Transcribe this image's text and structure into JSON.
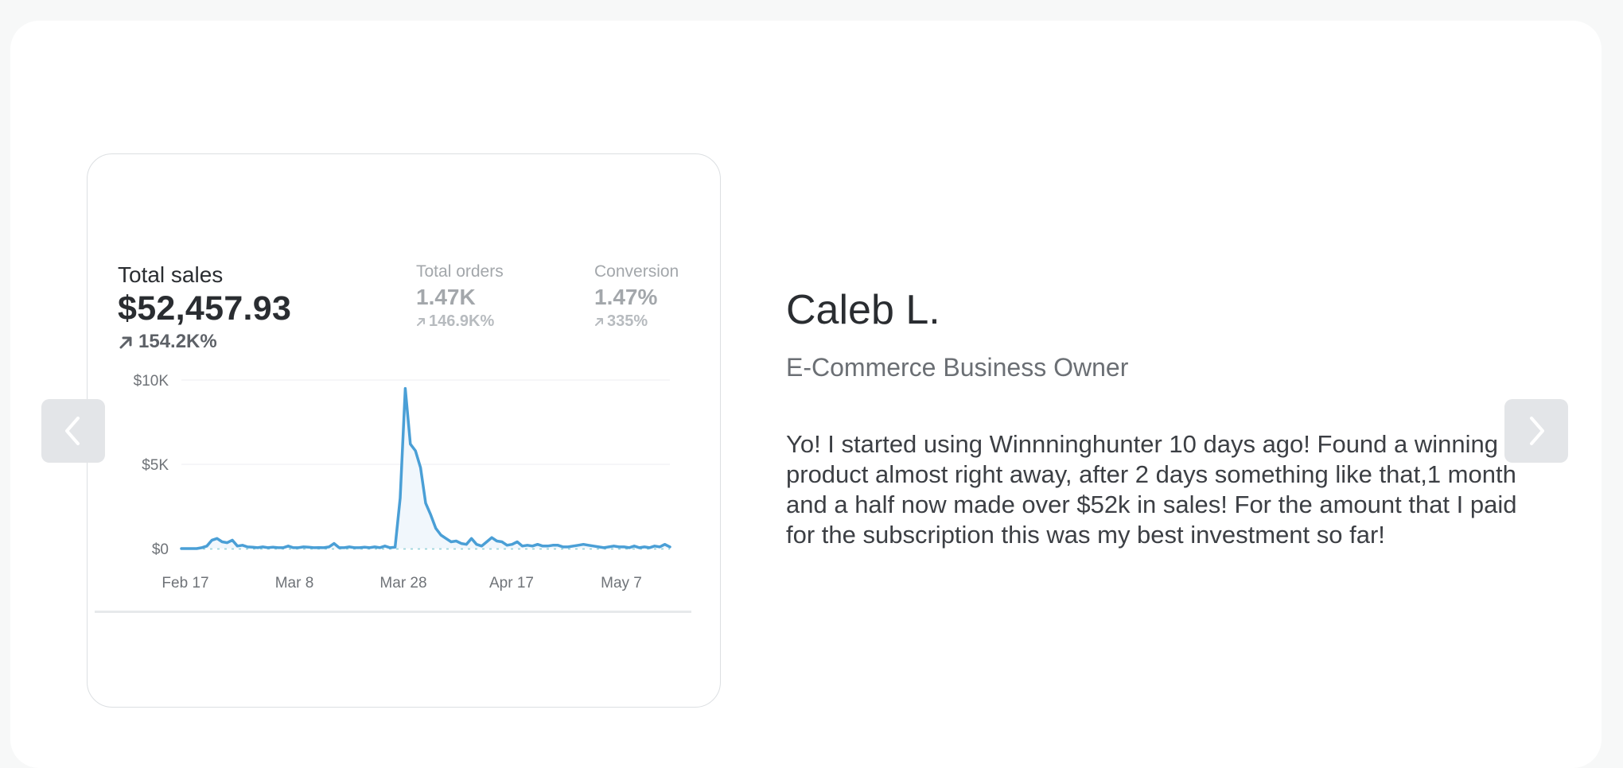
{
  "testimonial": {
    "name": "Caleb L.",
    "role": "E-Commerce Business Owner",
    "quote": "Yo! I started using Winnninghunter 10 days ago! Found a winning product almost right away, after 2 days something like that,1 month and a half now made over $52k in sales! For the amount that I paid for the subscription this was my best investment so far!"
  },
  "stats": {
    "total_sales": {
      "label": "Total sales",
      "value": "$52,457.93",
      "delta": "154.2K%"
    },
    "total_orders": {
      "label": "Total orders",
      "value": "1.47K",
      "delta": "146.9K%"
    },
    "conversion": {
      "label": "Conversion",
      "value": "1.47%",
      "delta": "335%"
    }
  },
  "navigation": {
    "prev_icon": "chevron-left-icon",
    "next_icon": "chevron-right-icon"
  },
  "colors": {
    "line": "#4a9fd6",
    "baseline": "#8fd0d8",
    "nav_bg": "#e3e5e8"
  },
  "chart_data": {
    "type": "area",
    "ylim": [
      0,
      10000
    ],
    "y_ticks": [
      {
        "value": 10000,
        "label": "$10K"
      },
      {
        "value": 5000,
        "label": "$5K"
      },
      {
        "value": 0,
        "label": "$0"
      }
    ],
    "x_tick_labels": [
      "Feb 17",
      "Mar 8",
      "Mar 28",
      "Apr 17",
      "May 7"
    ],
    "series": [
      {
        "values": [
          0,
          0,
          0,
          0,
          50,
          150,
          500,
          600,
          400,
          350,
          500,
          150,
          200,
          100,
          80,
          50,
          100,
          50,
          80,
          50,
          50,
          150,
          50,
          50,
          100,
          80,
          50,
          60,
          50,
          100,
          300,
          50,
          50,
          100,
          50,
          50,
          80,
          50,
          100,
          50,
          150,
          50,
          80,
          3000,
          9500,
          6200,
          5800,
          4800,
          2700,
          2000,
          1200,
          800,
          600,
          400,
          450,
          300,
          250,
          600,
          250,
          150,
          400,
          650,
          450,
          400,
          200,
          250,
          400,
          150,
          200,
          150,
          250,
          150,
          150,
          200,
          200,
          100,
          100,
          150,
          200,
          250,
          200,
          150,
          100,
          50,
          100,
          150,
          100,
          100,
          50,
          150,
          50,
          100,
          50,
          150,
          100,
          250,
          100
        ]
      }
    ]
  }
}
